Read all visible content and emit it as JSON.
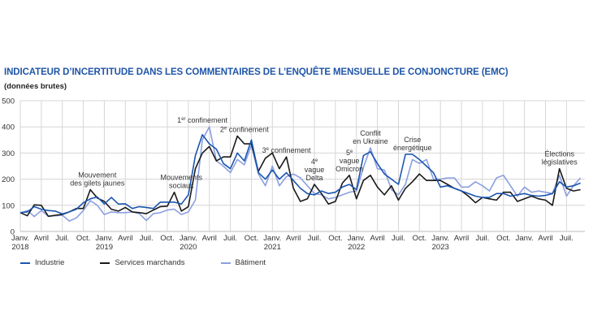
{
  "chart_data": {
    "type": "line",
    "title": "INDICATEUR D’INCERTITUDE DANS LES COMMENTAIRES DE L’ENQUÊTE MENSUELLE DE CONJONCTURE (EMC)",
    "subtitle": "(données brutes)",
    "xlabel": "",
    "ylabel": "",
    "ylim": [
      0,
      500
    ],
    "yticks": [
      0,
      100,
      200,
      300,
      400,
      500
    ],
    "x_start": "2018-01",
    "x_end": "2024-09",
    "x_frequency": "monthly",
    "xtick_labels": [
      {
        "month": "2018-01",
        "label": "Janv.",
        "year": "2018"
      },
      {
        "month": "2018-04",
        "label": "Avril"
      },
      {
        "month": "2018-07",
        "label": "Juil."
      },
      {
        "month": "2018-10",
        "label": "Oct."
      },
      {
        "month": "2019-01",
        "label": "Janv.",
        "year": "2019"
      },
      {
        "month": "2019-04",
        "label": "Avril"
      },
      {
        "month": "2019-07",
        "label": "Juil."
      },
      {
        "month": "2019-10",
        "label": "Oct."
      },
      {
        "month": "2020-01",
        "label": "Janv.",
        "year": "2020"
      },
      {
        "month": "2020-04",
        "label": "Avril"
      },
      {
        "month": "2020-07",
        "label": "Juil."
      },
      {
        "month": "2020-10",
        "label": "Oct."
      },
      {
        "month": "2021-01",
        "label": "Janv.",
        "year": "2021"
      },
      {
        "month": "2021-04",
        "label": "Avril"
      },
      {
        "month": "2021-07",
        "label": "Juil."
      },
      {
        "month": "2021-10",
        "label": "Oct."
      },
      {
        "month": "2022-01",
        "label": "Janv.",
        "year": "2022"
      },
      {
        "month": "2022-04",
        "label": "Avril"
      },
      {
        "month": "2022-07",
        "label": "Juil."
      },
      {
        "month": "2022-10",
        "label": "Oct."
      },
      {
        "month": "2023-01",
        "label": "Janv.",
        "year": "2023"
      },
      {
        "month": "2023-04",
        "label": "Avril"
      },
      {
        "month": "2023-07",
        "label": "Juil."
      },
      {
        "month": "2023-10",
        "label": "Oct."
      },
      {
        "month": "2024-01",
        "label": "Janv."
      },
      {
        "month": "2024-04",
        "label": "Avril"
      },
      {
        "month": "2024-07",
        "label": "Juil."
      }
    ],
    "grid": true,
    "legend_position": "bottom",
    "series": [
      {
        "name": "Industrie",
        "color": "#1a56b0",
        "values": [
          72,
          75,
          95,
          85,
          80,
          78,
          67,
          75,
          85,
          110,
          125,
          132,
          105,
          130,
          105,
          106,
          88,
          95,
          92,
          88,
          112,
          112,
          112,
          105,
          140,
          290,
          370,
          335,
          315,
          260,
          240,
          300,
          270,
          350,
          225,
          200,
          235,
          200,
          225,
          195,
          165,
          145,
          140,
          155,
          145,
          150,
          170,
          180,
          160,
          290,
          305,
          260,
          220,
          200,
          180,
          295,
          295,
          275,
          250,
          225,
          170,
          175,
          165,
          155,
          145,
          135,
          130,
          130,
          145,
          145,
          135,
          140,
          145,
          138,
          135,
          138,
          145,
          190,
          170,
          175,
          185
        ]
      },
      {
        "name": "Services marchands",
        "color": "#1a1a1a",
        "values": [
          72,
          60,
          102,
          100,
          58,
          62,
          65,
          75,
          88,
          88,
          160,
          128,
          115,
          85,
          78,
          92,
          75,
          72,
          68,
          82,
          95,
          97,
          150,
          78,
          95,
          240,
          300,
          325,
          270,
          285,
          285,
          365,
          335,
          335,
          230,
          280,
          300,
          240,
          285,
          165,
          115,
          125,
          180,
          145,
          105,
          115,
          185,
          215,
          125,
          195,
          215,
          170,
          140,
          175,
          120,
          165,
          190,
          220,
          195,
          195,
          195,
          180,
          165,
          155,
          135,
          110,
          130,
          125,
          120,
          150,
          150,
          115,
          125,
          135,
          125,
          120,
          100,
          240,
          165,
          155,
          160
        ]
      },
      {
        "name": "Bâtiment",
        "color": "#8c9fe0",
        "values": [
          70,
          80,
          57,
          80,
          58,
          60,
          62,
          40,
          52,
          80,
          118,
          100,
          65,
          75,
          72,
          72,
          75,
          68,
          42,
          68,
          72,
          82,
          85,
          65,
          75,
          120,
          350,
          400,
          270,
          250,
          225,
          275,
          255,
          330,
          220,
          175,
          250,
          175,
          210,
          220,
          205,
          175,
          145,
          140,
          125,
          130,
          140,
          150,
          155,
          245,
          320,
          240,
          235,
          160,
          140,
          180,
          275,
          260,
          275,
          200,
          200,
          205,
          205,
          170,
          170,
          190,
          175,
          155,
          205,
          215,
          175,
          135,
          170,
          150,
          155,
          150,
          145,
          215,
          135,
          175,
          205
        ]
      }
    ],
    "annotations": [
      {
        "month": "2018-12",
        "lines": [
          "Mouvement",
          "des gilets jaunes"
        ]
      },
      {
        "month": "2019-12",
        "lines": [
          "Mouvements",
          "sociaux"
        ]
      },
      {
        "month": "2020-03",
        "lines": [
          "1er confinement"
        ]
      },
      {
        "month": "2020-09",
        "lines": [
          "2e confinement"
        ]
      },
      {
        "month": "2021-03",
        "lines": [
          "3e confinement"
        ]
      },
      {
        "month": "2021-07",
        "lines": [
          "4e",
          "vague",
          "Delta"
        ]
      },
      {
        "month": "2021-12",
        "lines": [
          "5e",
          "vague",
          "Omicron"
        ]
      },
      {
        "month": "2022-03",
        "lines": [
          "Conflit",
          "en Ukraine"
        ]
      },
      {
        "month": "2022-09",
        "lines": [
          "Crise",
          "énergétique"
        ]
      },
      {
        "month": "2024-06",
        "lines": [
          "Élections",
          "législatives"
        ]
      }
    ]
  }
}
